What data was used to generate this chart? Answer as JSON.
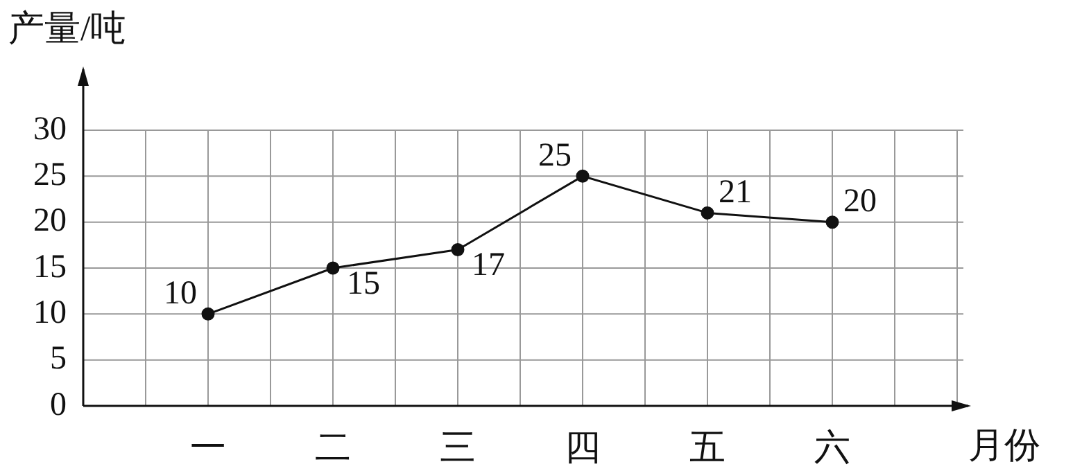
{
  "chart_data": {
    "type": "line",
    "xlabel": "月份",
    "ylabel": "产量/吨",
    "categories": [
      "一",
      "二",
      "三",
      "四",
      "五",
      "六"
    ],
    "values": [
      10,
      15,
      17,
      25,
      21,
      20
    ],
    "color": "#111111",
    "ylim": [
      0,
      30
    ],
    "yticks": [
      0,
      5,
      10,
      15,
      20,
      25,
      30
    ],
    "grid": true,
    "legend": false,
    "marker": "circle",
    "line_style": "solid",
    "data_labels": true
  }
}
